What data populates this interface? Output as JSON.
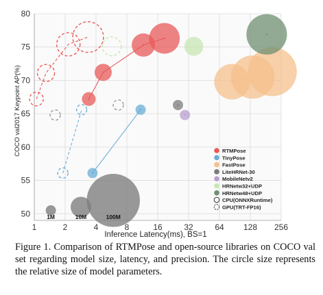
{
  "caption": "Figure 1. Comparison of RTMPose and open-source libraries on COCO val set regarding model size, latency, and precision.  The circle size represents the relative size of model parameters.",
  "chart_data": {
    "type": "scatter",
    "xlabel": "Inference Latency(ms), BS=1",
    "ylabel": "COCO val2017 Keypoint AP(%)",
    "x_scale": "log2",
    "xlim": [
      1,
      256
    ],
    "ylim": [
      49,
      80
    ],
    "x_ticks": [
      1,
      2,
      4,
      8,
      16,
      32,
      64,
      128,
      256
    ],
    "y_ticks": [
      50,
      55,
      60,
      65,
      70,
      75,
      80
    ],
    "grid": true,
    "legend_position": "lower-right",
    "size_legend": [
      {
        "label": "1M",
        "x": 1.45,
        "y": 50.5,
        "size": 1
      },
      {
        "label": "10M",
        "x": 2.85,
        "y": 51.0,
        "size": 10
      },
      {
        "label": "100M",
        "x": 5.9,
        "y": 52.0,
        "size": 100
      }
    ],
    "series": [
      {
        "name": "RTMPose",
        "device": "CPU",
        "color": "#e85a5a",
        "connected": true,
        "points": [
          {
            "x": 3.4,
            "y": 67.2,
            "size": 3
          },
          {
            "x": 4.7,
            "y": 71.2,
            "size": 6
          },
          {
            "x": 11.6,
            "y": 75.3,
            "size": 14
          },
          {
            "x": 18.6,
            "y": 76.3,
            "size": 28
          }
        ]
      },
      {
        "name": "RTMPose",
        "device": "GPU",
        "color": "#e85a5a",
        "connected": true,
        "points": [
          {
            "x": 1.05,
            "y": 67.2,
            "size": 3
          },
          {
            "x": 1.3,
            "y": 71.1,
            "size": 6
          },
          {
            "x": 2.15,
            "y": 75.4,
            "size": 14
          },
          {
            "x": 3.35,
            "y": 76.5,
            "size": 28
          }
        ]
      },
      {
        "name": "TinyPose",
        "device": "CPU",
        "color": "#6aaed6",
        "connected": true,
        "points": [
          {
            "x": 3.7,
            "y": 56.1,
            "size": 1
          },
          {
            "x": 10.9,
            "y": 65.6,
            "size": 1
          }
        ]
      },
      {
        "name": "TinyPose",
        "device": "GPU",
        "color": "#6aaed6",
        "connected": true,
        "points": [
          {
            "x": 1.9,
            "y": 56.1,
            "size": 1
          },
          {
            "x": 2.9,
            "y": 65.6,
            "size": 1
          }
        ]
      },
      {
        "name": "FastPose",
        "device": "CPU",
        "color": "#f5c08c",
        "connected": true,
        "points": [
          {
            "x": 85,
            "y": 69.8,
            "size": 40
          },
          {
            "x": 135,
            "y": 70.5,
            "size": 63
          },
          {
            "x": 210,
            "y": 71.3,
            "size": 83
          }
        ]
      },
      {
        "name": "LiteHRNet-30",
        "device": "CPU",
        "color": "#7b7b7b",
        "connected": false,
        "points": [
          {
            "x": 25.2,
            "y": 66.3,
            "size": 1
          }
        ]
      },
      {
        "name": "MobileNetv2",
        "device": "CPU",
        "color": "#b99fcf",
        "connected": false,
        "points": [
          {
            "x": 29.5,
            "y": 64.8,
            "size": 1
          }
        ]
      },
      {
        "name": "HRNetw32+UDP",
        "device": "CPU",
        "color": "#c8e6b4",
        "connected": false,
        "points": [
          {
            "x": 36,
            "y": 75.1,
            "size": 8
          }
        ]
      },
      {
        "name": "HRNetw32+UDP",
        "device": "GPU",
        "color": "#c8e6b4",
        "connected": false,
        "points": [
          {
            "x": 5.7,
            "y": 75.1,
            "size": 8
          }
        ]
      },
      {
        "name": "HRNetw48+UDP",
        "device": "CPU",
        "color": "#6f8f72",
        "connected": false,
        "points": [
          {
            "x": 185,
            "y": 76.9,
            "size": 54
          }
        ]
      },
      {
        "name": "MobileNetv2",
        "device": "GPU",
        "color": "#9a9a9a",
        "connected": false,
        "points": [
          {
            "x": 1.6,
            "y": 64.8,
            "size": 1
          }
        ]
      },
      {
        "name": "LiteHRNet-30",
        "device": "GPU",
        "color": "#9a9a9a",
        "connected": false,
        "points": [
          {
            "x": 6.6,
            "y": 66.3,
            "size": 1
          }
        ]
      }
    ],
    "legend": [
      {
        "label": "RTMPose",
        "color": "#e85a5a",
        "style": "fill"
      },
      {
        "label": "TinyPose",
        "color": "#6aaed6",
        "style": "fill"
      },
      {
        "label": "FastPose",
        "color": "#f5c08c",
        "style": "fill"
      },
      {
        "label": "LiteHRNet-30",
        "color": "#7b7b7b",
        "style": "fill"
      },
      {
        "label": "MobileNetv2",
        "color": "#b99fcf",
        "style": "fill"
      },
      {
        "label": "HRNetw32+UDP",
        "color": "#c8e6b4",
        "style": "fill"
      },
      {
        "label": "HRNetw48+UDP",
        "color": "#6f8f72",
        "style": "fill"
      },
      {
        "label": "CPU(ONNXRuntime)",
        "color": "#333333",
        "style": "solid"
      },
      {
        "label": "GPU(TRT-FP16)",
        "color": "#333333",
        "style": "dashed"
      }
    ]
  }
}
